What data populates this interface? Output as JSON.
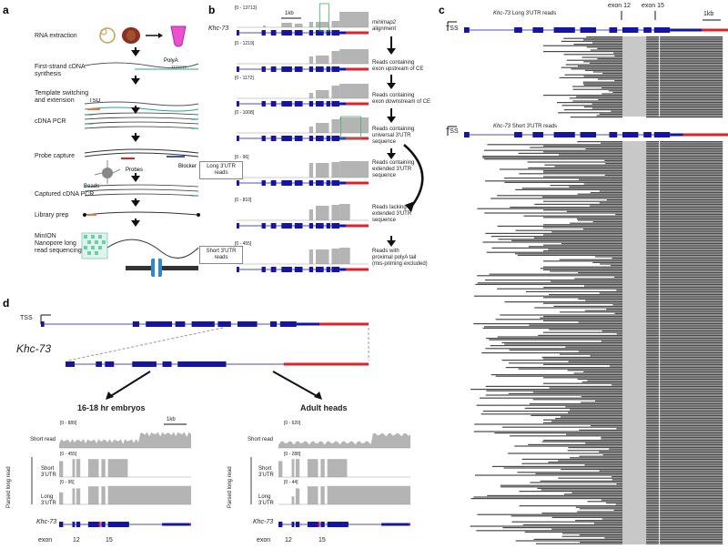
{
  "panels": {
    "a": "a",
    "b": "b",
    "c": "c",
    "d": "d"
  },
  "panel_a": {
    "steps": [
      "RNA extraction",
      "First-strand cDNA synthesis",
      "Template switching and extension",
      "cDNA PCR",
      "Probe capture",
      "Captured cDNA PCR",
      "Library prep",
      "MinION Nanopore long read sequencing"
    ],
    "polyA": "PolyA",
    "tso": "TSO",
    "beads": "Beads",
    "probes": "Probes",
    "blocker": "Blocker"
  },
  "panel_b": {
    "gene": "Khc-73",
    "scale": "1kb",
    "ranges": [
      "[0 - 13713]",
      "[0 - 1219]",
      "[0 - 1172]",
      "[0 - 1008]",
      "[0 - 96]",
      "[0 - 810]",
      "[0 - 455]"
    ],
    "steps": [
      [
        "minimap2",
        "alignment"
      ],
      [
        "Reads containing",
        "exon upstream of CE"
      ],
      [
        "Reads containing",
        "exon downstream of CE"
      ],
      [
        "Reads containing",
        "universal 3'UTR",
        "sequence"
      ],
      [
        "Reads containing",
        "extended 3'UTR",
        "sequence"
      ],
      [
        "Reads lacking",
        "extended 3'UTR",
        "sequence"
      ],
      [
        "Reads with",
        "proximal polyA tail",
        "(mis-priming excluded)"
      ]
    ],
    "long_box": [
      "Long 3'UTR",
      "reads"
    ],
    "short_box": [
      "Short 3'UTR",
      "reads"
    ]
  },
  "panel_c": {
    "tss": "TSS",
    "long_title_gene": "Khc-73",
    "long_title_rest": "Long 3'UTR reads",
    "short_title_gene": "Khc-73",
    "short_title_rest": "Short 3'UTR reads",
    "exon12": "exon 12",
    "exon15": "exon 15",
    "scale": "1kb"
  },
  "panel_d": {
    "tss": "TSS",
    "gene": "Khc-73",
    "embryo_title": "16-18 hr embryos",
    "adult_title": "Adult heads",
    "scale": "1kb",
    "embryo_ranges": [
      "[0 - 889]",
      "[0 - 455]",
      "[0 - 96]"
    ],
    "adult_ranges": [
      "[0 - 620]",
      "[0 - 288]",
      "[0 - 44]"
    ],
    "short_read": "Short read",
    "short_utr": [
      "Short",
      "3'UTR"
    ],
    "long_utr": [
      "Long",
      "3'UTR"
    ],
    "parsed": "Parsed long read",
    "exon": "exon",
    "exon12": "12",
    "exon15": "15"
  },
  "colors": {
    "exon": "#1414a8",
    "utr": "#e0202a",
    "coverage": "#b4b4b4",
    "reads_dark": "#4a4a4a",
    "reads_light": "#c8c8c8",
    "probe_green": "#3cb371"
  }
}
